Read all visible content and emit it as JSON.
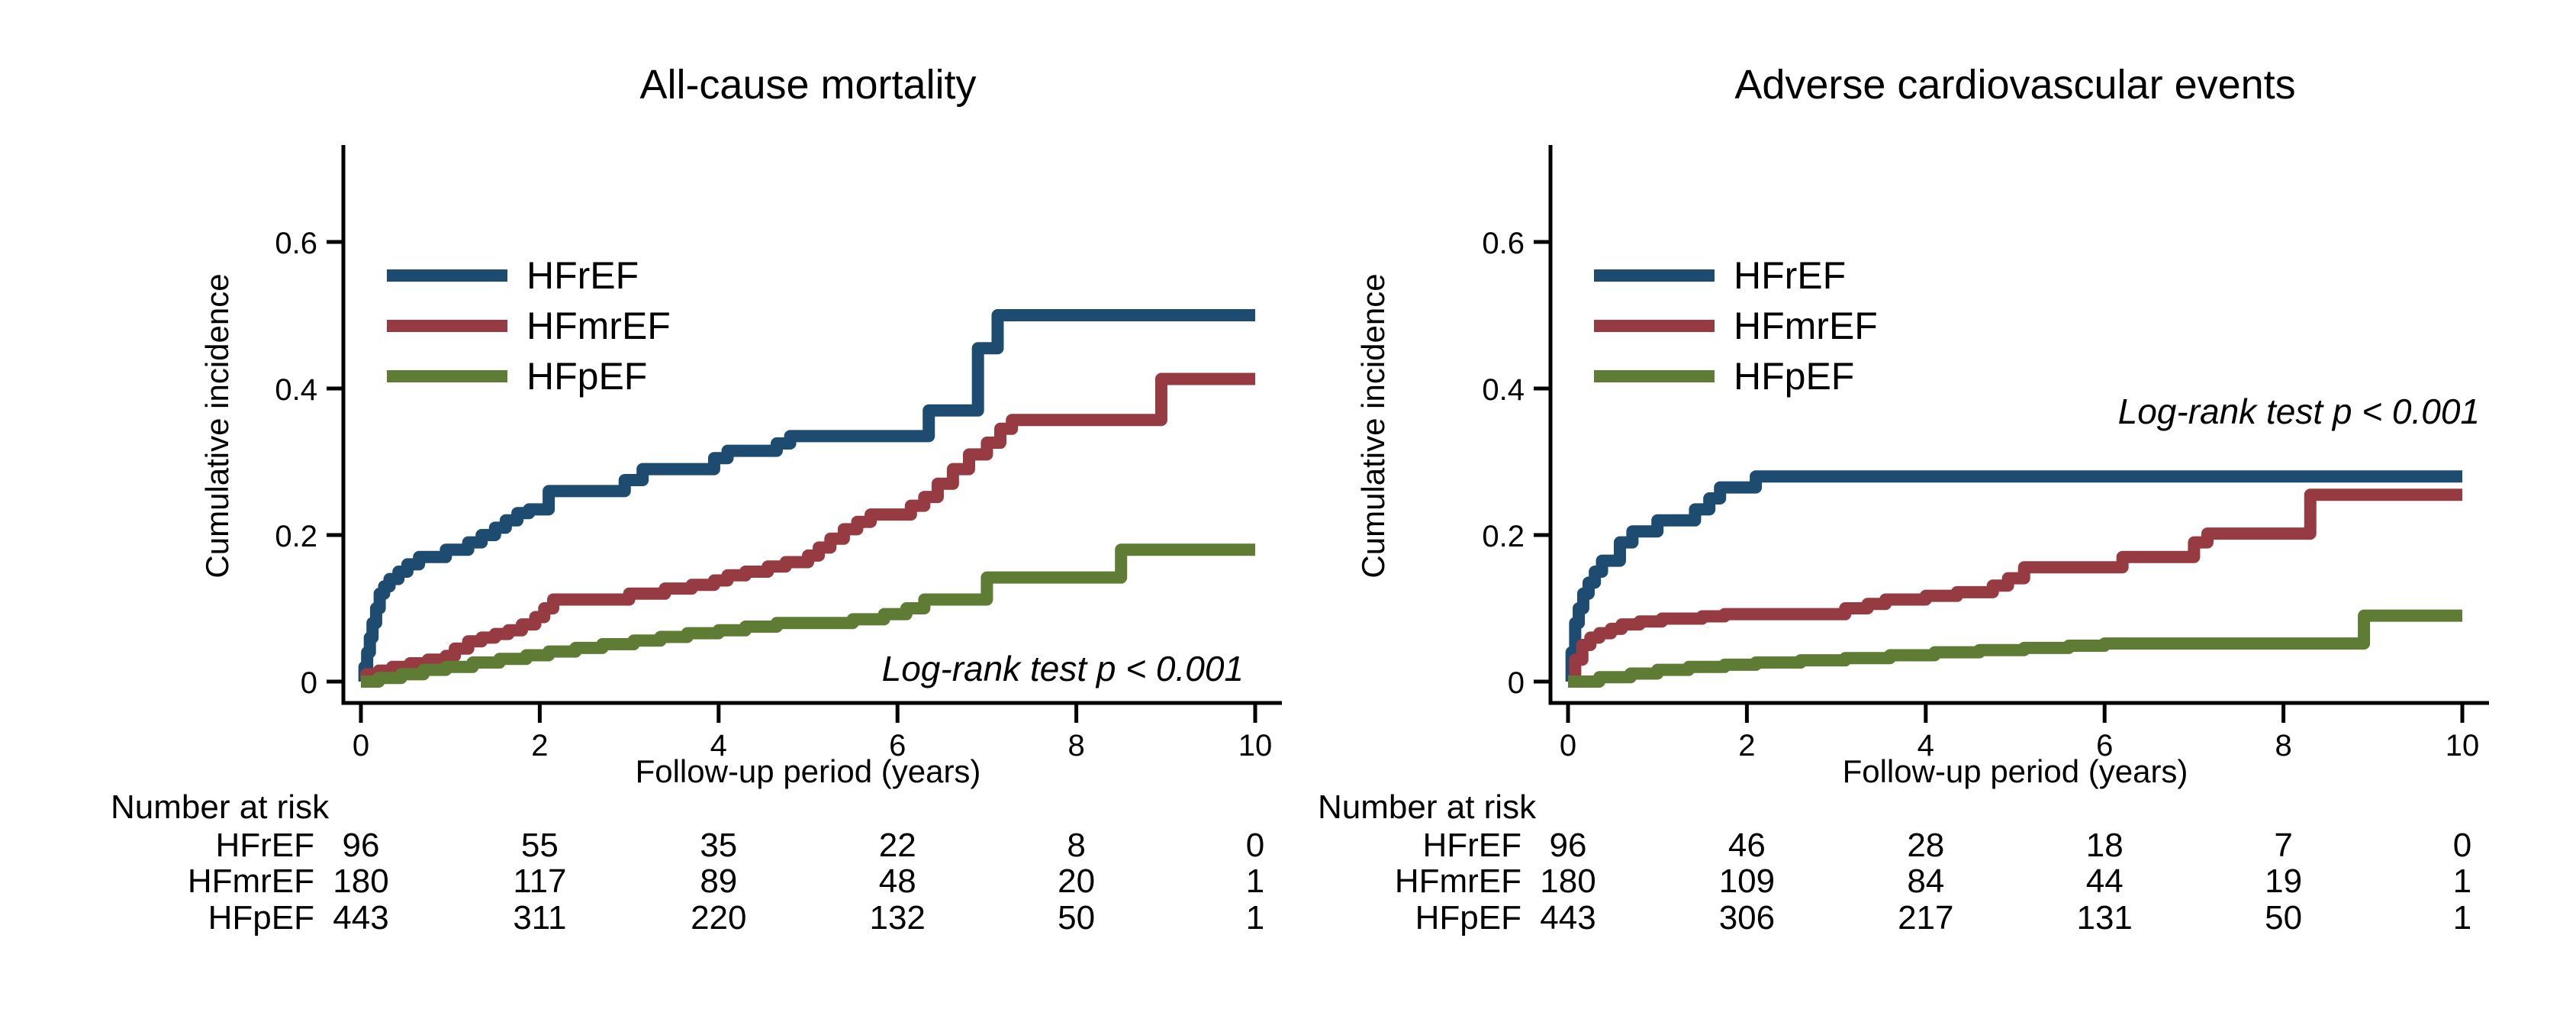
{
  "figure": {
    "background": "#ffffff",
    "text_color": "#000000",
    "axis_color": "#000000"
  },
  "chart_data": [
    {
      "type": "line",
      "subtype": "step-cumulative-incidence",
      "title": "All-cause mortality",
      "xlabel": "Follow-up period (years)",
      "ylabel": "Cumulative incidence",
      "annotation": "Log-rank test p < 0.001",
      "annotation_position": "bottom-right-inside",
      "legend_position": "top-left-inside",
      "xlim": [
        0,
        10
      ],
      "ylim": [
        0,
        0.65
      ],
      "xticks": [
        0,
        2,
        4,
        6,
        8,
        10
      ],
      "yticks": [
        0,
        0.2,
        0.4,
        0.6
      ],
      "grid": false,
      "series": [
        {
          "name": "HFrEF",
          "color": "#1e4c70",
          "points": [
            [
              0,
              0
            ],
            [
              0.04,
              0.02
            ],
            [
              0.07,
              0.04
            ],
            [
              0.1,
              0.06
            ],
            [
              0.13,
              0.08
            ],
            [
              0.17,
              0.1
            ],
            [
              0.21,
              0.12
            ],
            [
              0.26,
              0.13
            ],
            [
              0.32,
              0.14
            ],
            [
              0.42,
              0.15
            ],
            [
              0.52,
              0.16
            ],
            [
              0.65,
              0.17
            ],
            [
              0.95,
              0.18
            ],
            [
              1.2,
              0.19
            ],
            [
              1.35,
              0.2
            ],
            [
              1.5,
              0.21
            ],
            [
              1.62,
              0.22
            ],
            [
              1.75,
              0.23
            ],
            [
              1.88,
              0.235
            ],
            [
              2.1,
              0.26
            ],
            [
              2.95,
              0.275
            ],
            [
              3.15,
              0.29
            ],
            [
              3.95,
              0.305
            ],
            [
              4.1,
              0.315
            ],
            [
              4.65,
              0.325
            ],
            [
              4.8,
              0.335
            ],
            [
              6.35,
              0.37
            ],
            [
              6.9,
              0.455
            ],
            [
              7.12,
              0.5
            ],
            [
              10,
              0.5
            ]
          ]
        },
        {
          "name": "HFmrEF",
          "color": "#963b42",
          "points": [
            [
              0,
              0
            ],
            [
              0.06,
              0.01
            ],
            [
              0.2,
              0.015
            ],
            [
              0.35,
              0.02
            ],
            [
              0.55,
              0.025
            ],
            [
              0.75,
              0.03
            ],
            [
              0.95,
              0.035
            ],
            [
              1.05,
              0.045
            ],
            [
              1.2,
              0.055
            ],
            [
              1.35,
              0.06
            ],
            [
              1.5,
              0.065
            ],
            [
              1.65,
              0.07
            ],
            [
              1.8,
              0.078
            ],
            [
              1.95,
              0.088
            ],
            [
              2.05,
              0.1
            ],
            [
              2.15,
              0.112
            ],
            [
              3.0,
              0.12
            ],
            [
              3.4,
              0.127
            ],
            [
              3.7,
              0.132
            ],
            [
              3.95,
              0.138
            ],
            [
              4.1,
              0.145
            ],
            [
              4.3,
              0.15
            ],
            [
              4.55,
              0.157
            ],
            [
              4.75,
              0.163
            ],
            [
              5.0,
              0.172
            ],
            [
              5.12,
              0.183
            ],
            [
              5.25,
              0.195
            ],
            [
              5.4,
              0.208
            ],
            [
              5.55,
              0.218
            ],
            [
              5.7,
              0.228
            ],
            [
              6.15,
              0.24
            ],
            [
              6.3,
              0.252
            ],
            [
              6.45,
              0.27
            ],
            [
              6.62,
              0.29
            ],
            [
              6.8,
              0.31
            ],
            [
              7.0,
              0.326
            ],
            [
              7.15,
              0.345
            ],
            [
              7.28,
              0.357
            ],
            [
              8.95,
              0.413
            ],
            [
              10,
              0.413
            ]
          ]
        },
        {
          "name": "HFpEF",
          "color": "#5f7c34",
          "points": [
            [
              0,
              0
            ],
            [
              0.2,
              0.005
            ],
            [
              0.45,
              0.01
            ],
            [
              0.7,
              0.016
            ],
            [
              0.95,
              0.02
            ],
            [
              1.25,
              0.026
            ],
            [
              1.55,
              0.031
            ],
            [
              1.85,
              0.036
            ],
            [
              2.1,
              0.041
            ],
            [
              2.4,
              0.046
            ],
            [
              2.7,
              0.051
            ],
            [
              3.05,
              0.056
            ],
            [
              3.35,
              0.061
            ],
            [
              3.65,
              0.066
            ],
            [
              4.0,
              0.07
            ],
            [
              4.3,
              0.075
            ],
            [
              4.65,
              0.08
            ],
            [
              5.5,
              0.085
            ],
            [
              5.85,
              0.092
            ],
            [
              6.1,
              0.1
            ],
            [
              6.3,
              0.112
            ],
            [
              7.0,
              0.142
            ],
            [
              8.5,
              0.18
            ],
            [
              10,
              0.18
            ]
          ]
        }
      ],
      "number_at_risk": {
        "label": "Number at risk",
        "time_points": [
          0,
          2,
          4,
          6,
          8,
          10
        ],
        "rows": [
          {
            "name": "HFrEF",
            "values": [
              96,
              55,
              35,
              22,
              8,
              0
            ]
          },
          {
            "name": "HFmrEF",
            "values": [
              180,
              117,
              89,
              48,
              20,
              1
            ]
          },
          {
            "name": "HFpEF",
            "values": [
              443,
              311,
              220,
              132,
              50,
              1
            ]
          }
        ]
      }
    },
    {
      "type": "line",
      "subtype": "step-cumulative-incidence",
      "title": "Adverse cardiovascular events",
      "xlabel": "Follow-up period (years)",
      "ylabel": "Cumulative incidence",
      "annotation": "Log-rank test p < 0.001",
      "annotation_position": "middle-right-inside",
      "legend_position": "top-left-inside",
      "xlim": [
        0,
        10
      ],
      "ylim": [
        0,
        0.65
      ],
      "xticks": [
        0,
        2,
        4,
        6,
        8,
        10
      ],
      "yticks": [
        0,
        0.2,
        0.4,
        0.6
      ],
      "grid": false,
      "series": [
        {
          "name": "HFrEF",
          "color": "#1e4c70",
          "points": [
            [
              0,
              0
            ],
            [
              0.04,
              0.04
            ],
            [
              0.08,
              0.08
            ],
            [
              0.12,
              0.1
            ],
            [
              0.17,
              0.12
            ],
            [
              0.23,
              0.135
            ],
            [
              0.3,
              0.15
            ],
            [
              0.38,
              0.165
            ],
            [
              0.58,
              0.19
            ],
            [
              0.72,
              0.205
            ],
            [
              1.0,
              0.22
            ],
            [
              1.42,
              0.235
            ],
            [
              1.58,
              0.25
            ],
            [
              1.7,
              0.265
            ],
            [
              2.1,
              0.28
            ],
            [
              10,
              0.28
            ]
          ]
        },
        {
          "name": "HFmrEF",
          "color": "#963b42",
          "points": [
            [
              0,
              0
            ],
            [
              0.08,
              0.03
            ],
            [
              0.16,
              0.05
            ],
            [
              0.25,
              0.06
            ],
            [
              0.35,
              0.066
            ],
            [
              0.48,
              0.072
            ],
            [
              0.6,
              0.078
            ],
            [
              0.8,
              0.082
            ],
            [
              1.05,
              0.086
            ],
            [
              1.5,
              0.089
            ],
            [
              1.75,
              0.092
            ],
            [
              3.1,
              0.1
            ],
            [
              3.35,
              0.106
            ],
            [
              3.55,
              0.112
            ],
            [
              4.0,
              0.117
            ],
            [
              4.35,
              0.122
            ],
            [
              4.75,
              0.131
            ],
            [
              4.92,
              0.141
            ],
            [
              5.1,
              0.156
            ],
            [
              6.2,
              0.17
            ],
            [
              7.0,
              0.19
            ],
            [
              7.15,
              0.202
            ],
            [
              8.3,
              0.255
            ],
            [
              10,
              0.255
            ]
          ]
        },
        {
          "name": "HFpEF",
          "color": "#5f7c34",
          "points": [
            [
              0,
              0
            ],
            [
              0.35,
              0.006
            ],
            [
              0.7,
              0.011
            ],
            [
              1.0,
              0.016
            ],
            [
              1.35,
              0.02
            ],
            [
              1.75,
              0.023
            ],
            [
              2.1,
              0.026
            ],
            [
              2.6,
              0.029
            ],
            [
              3.1,
              0.032
            ],
            [
              3.6,
              0.036
            ],
            [
              4.1,
              0.04
            ],
            [
              4.6,
              0.043
            ],
            [
              5.1,
              0.046
            ],
            [
              5.6,
              0.049
            ],
            [
              6.0,
              0.052
            ],
            [
              8.9,
              0.09
            ],
            [
              10,
              0.09
            ]
          ]
        }
      ],
      "number_at_risk": {
        "label": "Number at risk",
        "time_points": [
          0,
          2,
          4,
          6,
          8,
          10
        ],
        "rows": [
          {
            "name": "HFrEF",
            "values": [
              96,
              46,
              28,
              18,
              7,
              0
            ]
          },
          {
            "name": "HFmrEF",
            "values": [
              180,
              109,
              84,
              44,
              19,
              1
            ]
          },
          {
            "name": "HFpEF",
            "values": [
              443,
              306,
              217,
              131,
              50,
              1
            ]
          }
        ]
      }
    }
  ]
}
